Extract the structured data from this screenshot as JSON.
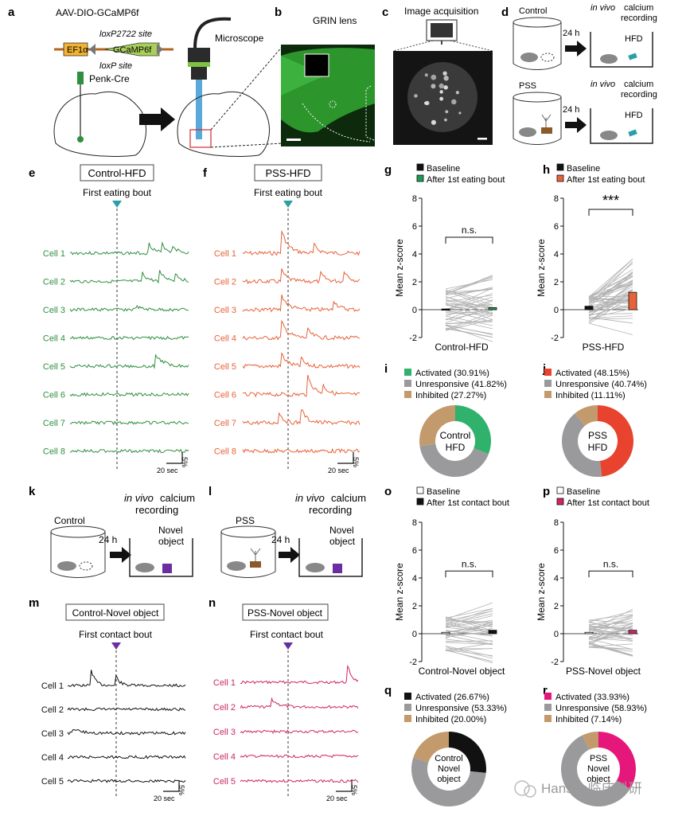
{
  "colors": {
    "green": "#2f8f3f",
    "orange": "#e8623a",
    "teal": "#2aa0a6",
    "purple": "#6a2ea0",
    "magenta": "#cf2467",
    "activated_green": "#30b26c",
    "activated_red": "#e8432e",
    "activated_black": "#111111",
    "activated_magenta": "#e6177a",
    "unresponsive": "#9a9a9c",
    "inhibited": "#c39a6b",
    "trace_gray": "#b0b0b0"
  },
  "panels": {
    "a": {
      "label": "a",
      "construct": "AAV-DIO-GCaMP6f",
      "ef1a": "EF1α",
      "gene": "GCaMP6f",
      "site1": "loxP2722 site",
      "site2": "loxP site",
      "mouse": "Penk-Cre",
      "microscope": "Microscope"
    },
    "b": {
      "label": "b",
      "title": "GRIN lens"
    },
    "c": {
      "label": "c",
      "title": "Image acquisition"
    },
    "d": {
      "label": "d",
      "control": "Control",
      "pss": "PSS",
      "delay": "24 h",
      "recording_italic": "in vivo",
      "recording_rest": "calcium",
      "recording2": "recording",
      "hfd": "HFD"
    },
    "e": {
      "label": "e",
      "title": "Control-HFD",
      "event": "First eating bout",
      "cells": [
        "Cell 1",
        "Cell 2",
        "Cell 3",
        "Cell 4",
        "Cell 5",
        "Cell 6",
        "Cell 7",
        "Cell 8"
      ],
      "scale_y": "5%",
      "scale_x": "20 sec"
    },
    "f": {
      "label": "f",
      "title": "PSS-HFD",
      "event": "First eating bout",
      "cells": [
        "Cell 1",
        "Cell 2",
        "Cell 3",
        "Cell 4",
        "Cell 5",
        "Cell 6",
        "Cell 7",
        "Cell 8"
      ],
      "scale_y": "5%",
      "scale_x": "20 sec"
    },
    "g": {
      "label": "g",
      "legend": [
        "Baseline",
        "After 1st eating bout"
      ],
      "xlabel": "Control-HFD",
      "ylabel": "Mean z-score",
      "sig": "n.s."
    },
    "h": {
      "label": "h",
      "legend": [
        "Baseline",
        "After 1st eating bout"
      ],
      "xlabel": "PSS-HFD",
      "ylabel": "Mean z-score",
      "sig": "***"
    },
    "i": {
      "label": "i",
      "center": [
        "Control",
        "HFD"
      ]
    },
    "j": {
      "label": "j",
      "center": [
        "PSS",
        "HFD"
      ]
    },
    "k": {
      "label": "k",
      "control": "Control",
      "delay": "24 h",
      "recording_italic": "in vivo",
      "recording_rest": "calcium",
      "recording2": "recording",
      "novel1": "Novel",
      "novel2": "object"
    },
    "l": {
      "label": "l",
      "pss": "PSS",
      "delay": "24 h",
      "recording_italic": "in vivo",
      "recording_rest": "calcium",
      "recording2": "recording",
      "novel1": "Novel",
      "novel2": "object"
    },
    "m": {
      "label": "m",
      "title": "Control-Novel object",
      "event": "First contact bout",
      "cells": [
        "Cell 1",
        "Cell 2",
        "Cell 3",
        "Cell 4",
        "Cell 5"
      ],
      "scale_y": "5%",
      "scale_x": "20 sec"
    },
    "n": {
      "label": "n",
      "title": "PSS-Novel object",
      "event": "First contact bout",
      "cells": [
        "Cell 1",
        "Cell 2",
        "Cell 3",
        "Cell 4",
        "Cell 5"
      ],
      "scale_y": "5%",
      "scale_x": "20 sec"
    },
    "o": {
      "label": "o",
      "legend": [
        "Baseline",
        "After 1st contact bout"
      ],
      "xlabel": "Control-Novel object",
      "ylabel": "Mean z-score",
      "sig": "n.s."
    },
    "p": {
      "label": "p",
      "legend": [
        "Baseline",
        "After 1st contact bout"
      ],
      "xlabel": "PSS-Novel object",
      "ylabel": "Mean z-score",
      "sig": "n.s."
    },
    "q": {
      "label": "q",
      "center": [
        "Control",
        "Novel",
        "object"
      ]
    },
    "r": {
      "label": "r",
      "center": [
        "PSS",
        "Novel",
        "object"
      ]
    }
  },
  "watermark": "Hanson临床科研",
  "chart_data": [
    {
      "panel": "g",
      "type": "bar",
      "title": "",
      "xlabel": "Control-HFD",
      "ylabel": "Mean z-score",
      "ylim": [
        -2,
        8
      ],
      "yticks": [
        -2,
        0,
        2,
        4,
        6,
        8
      ],
      "categories": [
        "Baseline",
        "After 1st eating bout"
      ],
      "values": [
        0.05,
        0.15
      ],
      "colors": [
        "#111111",
        "#1f9a52"
      ]
    },
    {
      "panel": "h",
      "type": "bar",
      "title": "",
      "xlabel": "PSS-HFD",
      "ylabel": "Mean z-score",
      "ylim": [
        -2,
        8
      ],
      "yticks": [
        -2,
        0,
        2,
        4,
        6,
        8
      ],
      "categories": [
        "Baseline",
        "After 1st eating bout"
      ],
      "values": [
        0.25,
        1.25
      ],
      "colors": [
        "#111111",
        "#e8623a"
      ]
    },
    {
      "panel": "o",
      "type": "bar",
      "title": "",
      "xlabel": "Control-Novel object",
      "ylabel": "Mean z-score",
      "ylim": [
        -2,
        8
      ],
      "yticks": [
        -2,
        0,
        2,
        4,
        6,
        8
      ],
      "categories": [
        "Baseline",
        "After 1st contact bout"
      ],
      "values": [
        0.1,
        0.25
      ],
      "colors": [
        "#ffffff",
        "#111111"
      ]
    },
    {
      "panel": "p",
      "type": "bar",
      "title": "",
      "xlabel": "PSS-Novel object",
      "ylabel": "Mean z-score",
      "ylim": [
        -2,
        8
      ],
      "yticks": [
        -2,
        0,
        2,
        4,
        6,
        8
      ],
      "categories": [
        "Baseline",
        "After 1st contact bout"
      ],
      "values": [
        0.1,
        0.25
      ],
      "colors": [
        "#ffffff",
        "#cf2467"
      ]
    },
    {
      "panel": "i",
      "type": "pie",
      "labels": [
        "Activated (30.91%)",
        "Unresponsive (41.82%)",
        "Inhibited (27.27%)"
      ],
      "values": [
        30.91,
        41.82,
        27.27
      ],
      "colors": [
        "#30b26c",
        "#9a9a9c",
        "#c39a6b"
      ]
    },
    {
      "panel": "j",
      "type": "pie",
      "labels": [
        "Activated (48.15%)",
        "Unresponsive (40.74%)",
        "Inhibited (11.11%)"
      ],
      "values": [
        48.15,
        40.74,
        11.11
      ],
      "colors": [
        "#e8432e",
        "#9a9a9c",
        "#c39a6b"
      ]
    },
    {
      "panel": "q",
      "type": "pie",
      "labels": [
        "Activated (26.67%)",
        "Unresponsive (53.33%)",
        "Inhibited (20.00%)"
      ],
      "values": [
        26.67,
        53.33,
        20.0
      ],
      "colors": [
        "#111111",
        "#9a9a9c",
        "#c39a6b"
      ]
    },
    {
      "panel": "r",
      "type": "pie",
      "labels": [
        "Activated (33.93%)",
        "Unresponsive (58.93%)",
        "Inhibited (7.14%)"
      ],
      "values": [
        33.93,
        58.93,
        7.14
      ],
      "colors": [
        "#e6177a",
        "#9a9a9c",
        "#c39a6b"
      ]
    }
  ]
}
